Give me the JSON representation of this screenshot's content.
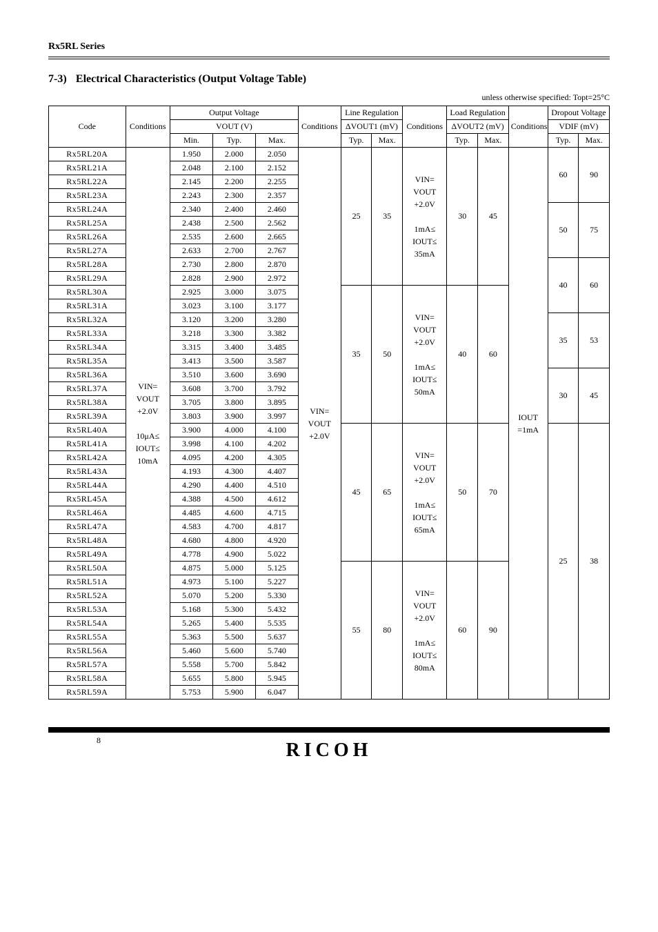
{
  "header": {
    "series": "Rx5RL Series",
    "section_no": "7-3)",
    "section_title": "Electrical Characteristics (Output Voltage Table)",
    "unit_note": "unless otherwise specified: Topt=25°C"
  },
  "columns": {
    "code": "Code",
    "conditions": "Conditions",
    "vout": "Output Voltage",
    "vout_sub": "VOUT (V)",
    "line_reg": "Line Regulation",
    "line_reg_sub": "ΔVOUT1 (mV)",
    "load_reg": "Load Regulation",
    "load_reg_sub": "ΔVOUT2 (mV)",
    "dropout": "Dropout Voltage",
    "dropout_sub": "VDIF (mV)",
    "min": "Min.",
    "typ": "Typ.",
    "max": "Max."
  },
  "parts": [
    {
      "p": "Rx5RL20A",
      "min": "1.950",
      "typ": "2.000",
      "max": "2.050"
    },
    {
      "p": "Rx5RL21A",
      "min": "2.048",
      "typ": "2.100",
      "max": "2.152"
    },
    {
      "p": "Rx5RL22A",
      "min": "2.145",
      "typ": "2.200",
      "max": "2.255"
    },
    {
      "p": "Rx5RL23A",
      "min": "2.243",
      "typ": "2.300",
      "max": "2.357"
    },
    {
      "p": "Rx5RL24A",
      "min": "2.340",
      "typ": "2.400",
      "max": "2.460"
    },
    {
      "p": "Rx5RL25A",
      "min": "2.438",
      "typ": "2.500",
      "max": "2.562"
    },
    {
      "p": "Rx5RL26A",
      "min": "2.535",
      "typ": "2.600",
      "max": "2.665"
    },
    {
      "p": "Rx5RL27A",
      "min": "2.633",
      "typ": "2.700",
      "max": "2.767"
    },
    {
      "p": "Rx5RL28A",
      "min": "2.730",
      "typ": "2.800",
      "max": "2.870"
    },
    {
      "p": "Rx5RL29A",
      "min": "2.828",
      "typ": "2.900",
      "max": "2.972"
    },
    {
      "p": "Rx5RL30A",
      "min": "2.925",
      "typ": "3.000",
      "max": "3.075"
    },
    {
      "p": "Rx5RL31A",
      "min": "3.023",
      "typ": "3.100",
      "max": "3.177"
    },
    {
      "p": "Rx5RL32A",
      "min": "3.120",
      "typ": "3.200",
      "max": "3.280"
    },
    {
      "p": "Rx5RL33A",
      "min": "3.218",
      "typ": "3.300",
      "max": "3.382"
    },
    {
      "p": "Rx5RL34A",
      "min": "3.315",
      "typ": "3.400",
      "max": "3.485"
    },
    {
      "p": "Rx5RL35A",
      "min": "3.413",
      "typ": "3.500",
      "max": "3.587"
    },
    {
      "p": "Rx5RL36A",
      "min": "3.510",
      "typ": "3.600",
      "max": "3.690"
    },
    {
      "p": "Rx5RL37A",
      "min": "3.608",
      "typ": "3.700",
      "max": "3.792"
    },
    {
      "p": "Rx5RL38A",
      "min": "3.705",
      "typ": "3.800",
      "max": "3.895"
    },
    {
      "p": "Rx5RL39A",
      "min": "3.803",
      "typ": "3.900",
      "max": "3.997"
    },
    {
      "p": "Rx5RL40A",
      "min": "3.900",
      "typ": "4.000",
      "max": "4.100"
    },
    {
      "p": "Rx5RL41A",
      "min": "3.998",
      "typ": "4.100",
      "max": "4.202"
    },
    {
      "p": "Rx5RL42A",
      "min": "4.095",
      "typ": "4.200",
      "max": "4.305"
    },
    {
      "p": "Rx5RL43A",
      "min": "4.193",
      "typ": "4.300",
      "max": "4.407"
    },
    {
      "p": "Rx5RL44A",
      "min": "4.290",
      "typ": "4.400",
      "max": "4.510"
    },
    {
      "p": "Rx5RL45A",
      "min": "4.388",
      "typ": "4.500",
      "max": "4.612"
    },
    {
      "p": "Rx5RL46A",
      "min": "4.485",
      "typ": "4.600",
      "max": "4.715"
    },
    {
      "p": "Rx5RL47A",
      "min": "4.583",
      "typ": "4.700",
      "max": "4.817"
    },
    {
      "p": "Rx5RL48A",
      "min": "4.680",
      "typ": "4.800",
      "max": "4.920"
    },
    {
      "p": "Rx5RL49A",
      "min": "4.778",
      "typ": "4.900",
      "max": "5.022"
    },
    {
      "p": "Rx5RL50A",
      "min": "4.875",
      "typ": "5.000",
      "max": "5.125"
    },
    {
      "p": "Rx5RL51A",
      "min": "4.973",
      "typ": "5.100",
      "max": "5.227"
    },
    {
      "p": "Rx5RL52A",
      "min": "5.070",
      "typ": "5.200",
      "max": "5.330"
    },
    {
      "p": "Rx5RL53A",
      "min": "5.168",
      "typ": "5.300",
      "max": "5.432"
    },
    {
      "p": "Rx5RL54A",
      "min": "5.265",
      "typ": "5.400",
      "max": "5.535"
    },
    {
      "p": "Rx5RL55A",
      "min": "5.363",
      "typ": "5.500",
      "max": "5.637"
    },
    {
      "p": "Rx5RL56A",
      "min": "5.460",
      "typ": "5.600",
      "max": "5.740"
    },
    {
      "p": "Rx5RL57A",
      "min": "5.558",
      "typ": "5.700",
      "max": "5.842"
    },
    {
      "p": "Rx5RL58A",
      "min": "5.655",
      "typ": "5.800",
      "max": "5.945"
    },
    {
      "p": "Rx5RL59A",
      "min": "5.753",
      "typ": "5.900",
      "max": "6.047"
    }
  ],
  "cond_vout": {
    "l1": "VIN=",
    "l2": "VOUT",
    "l3": "+2.0V",
    "blank": "",
    "l4": "10μA≤",
    "l5": "IOUT≤",
    "l6": "10mA"
  },
  "line_groups": [
    {
      "span": 10,
      "typ": "25",
      "max": "35"
    },
    {
      "span": 10,
      "typ": "35",
      "max": "50"
    },
    {
      "span": 10,
      "typ": "45",
      "max": "65"
    },
    {
      "span": 10,
      "typ": "55",
      "max": "80"
    }
  ],
  "cond_line": {
    "l1": "VIN=",
    "l2": "VOUT",
    "l3": "+2.0V"
  },
  "load_groups": [
    {
      "span": 10,
      "typ": "30",
      "max": "45",
      "cond": {
        "l1": "VIN=",
        "l2": "VOUT",
        "l3": "+2.0V",
        "blank": "",
        "l4": "1mA≤",
        "l5": "IOUT≤",
        "l6": "35mA"
      }
    },
    {
      "span": 10,
      "typ": "40",
      "max": "60",
      "cond": {
        "l1": "VIN=",
        "l2": "VOUT",
        "l3": "+2.0V",
        "blank": "",
        "l4": "1mA≤",
        "l5": "IOUT≤",
        "l6": "50mA"
      }
    },
    {
      "span": 10,
      "typ": "50",
      "max": "70",
      "cond": {
        "l1": "VIN=",
        "l2": "VOUT",
        "l3": "+2.0V",
        "blank": "",
        "l4": "1mA≤",
        "l5": "IOUT≤",
        "l6": "65mA"
      }
    },
    {
      "span": 10,
      "typ": "60",
      "max": "90",
      "cond": {
        "l1": "VIN=",
        "l2": "VOUT",
        "l3": "+2.0V",
        "blank": "",
        "l4": "1mA≤",
        "l5": "IOUT≤",
        "l6": "80mA"
      }
    }
  ],
  "cond_drop": {
    "l1": "IOUT",
    "l2": "=1mA"
  },
  "drop_groups": [
    {
      "span": 4,
      "typ": "60",
      "max": "90"
    },
    {
      "span": 4,
      "typ": "50",
      "max": "75"
    },
    {
      "span": 4,
      "typ": "40",
      "max": "60"
    },
    {
      "span": 4,
      "typ": "35",
      "max": "53"
    },
    {
      "span": 4,
      "typ": "30",
      "max": "45"
    },
    {
      "span": 20,
      "typ": "25",
      "max": "38"
    }
  ],
  "footer": {
    "page": "8",
    "logo": "RICOH"
  }
}
